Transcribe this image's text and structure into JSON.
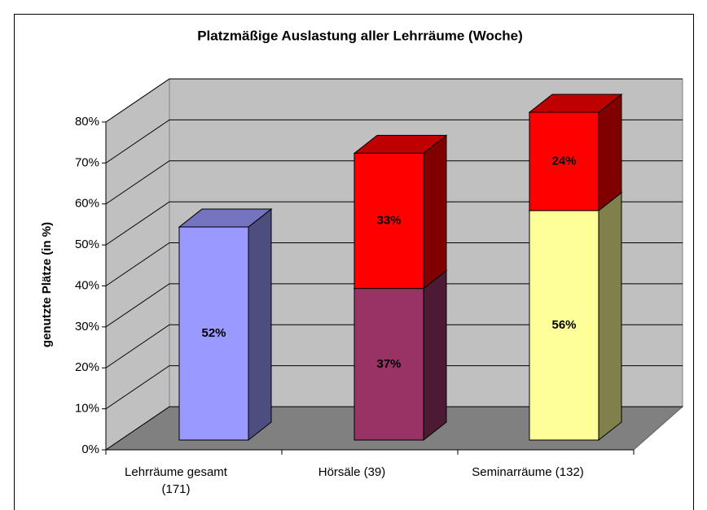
{
  "chart_data": {
    "type": "bar",
    "stacked": true,
    "title": "Platzmäßige Auslastung aller Lehrräume (Woche)",
    "y_label": "genutzte Plätze (in %)",
    "categories": [
      "Lehrräume gesamt (171)",
      "Hörsäle (39)",
      "Seminarräume (132)"
    ],
    "series": [
      {
        "colors": [
          "#9999ff",
          "#993366",
          "#ffff99"
        ],
        "values": [
          52,
          37,
          56
        ],
        "value_labels": [
          "52%",
          "37%",
          "56%"
        ]
      },
      {
        "color": "#ff0000",
        "values": [
          null,
          33,
          24
        ],
        "value_labels": [
          null,
          "33%",
          "24%"
        ]
      }
    ],
    "ylim": [
      0,
      80
    ],
    "yticks": [
      {
        "value": 0,
        "label": "0%"
      },
      {
        "value": 10,
        "label": "10%"
      },
      {
        "value": 20,
        "label": "20%"
      },
      {
        "value": 30,
        "label": "30%"
      },
      {
        "value": 40,
        "label": "40%"
      },
      {
        "value": 50,
        "label": "50%"
      },
      {
        "value": 60,
        "label": "60%"
      },
      {
        "value": 70,
        "label": "70%"
      },
      {
        "value": 80,
        "label": "80%"
      }
    ],
    "grid": true
  }
}
